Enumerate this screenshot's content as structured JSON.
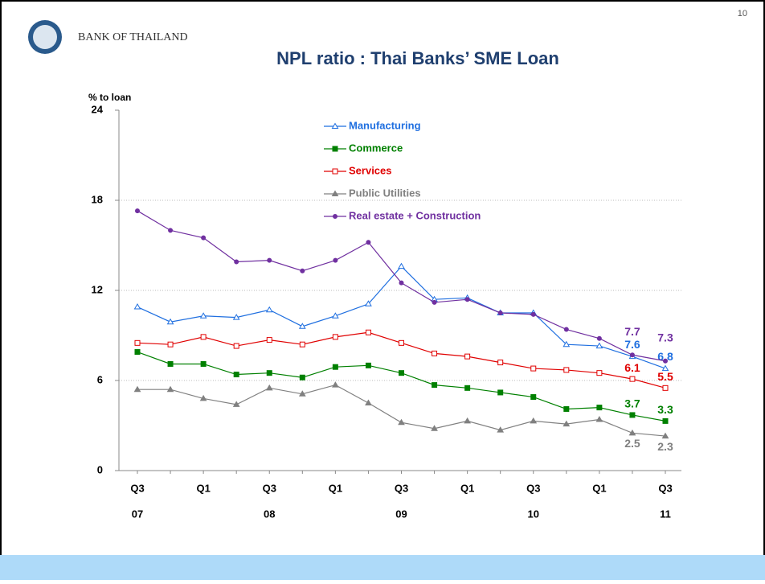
{
  "header": {
    "org": "BANK OF THAILAND",
    "page": "10"
  },
  "chart_data": {
    "type": "line",
    "title": "NPL ratio : Thai Banks’ SME Loan",
    "y_label": "% to loan",
    "categories": [
      "Q3",
      null,
      "Q1",
      null,
      "Q3",
      null,
      "Q1",
      null,
      "Q3",
      null,
      "Q1",
      null,
      "Q3",
      null,
      "Q1",
      null,
      "Q3"
    ],
    "category_years": [
      "07",
      null,
      null,
      null,
      "08",
      null,
      null,
      null,
      "09",
      null,
      null,
      null,
      "10",
      null,
      null,
      null,
      "11"
    ],
    "ylim": [
      0,
      24
    ],
    "yticks": [
      0,
      6,
      12,
      18,
      24
    ],
    "grid": true,
    "series": [
      {
        "name": "Manufacturing",
        "color": "#1f6fe0",
        "marker": "triangle-open",
        "values": [
          10.9,
          9.9,
          10.3,
          10.2,
          10.7,
          9.6,
          10.3,
          11.1,
          13.6,
          11.4,
          11.5,
          10.5,
          10.5,
          8.4,
          8.3,
          7.6,
          6.8
        ],
        "value_labels": [
          null,
          null,
          null,
          null,
          null,
          null,
          null,
          null,
          null,
          null,
          null,
          null,
          null,
          null,
          null,
          "7.6",
          "6.8"
        ]
      },
      {
        "name": "Commerce",
        "color": "#008000",
        "marker": "square",
        "values": [
          7.9,
          7.1,
          7.1,
          6.4,
          6.5,
          6.2,
          6.9,
          7.0,
          6.5,
          5.7,
          5.5,
          5.2,
          4.9,
          4.1,
          4.2,
          3.7,
          3.3
        ],
        "value_labels": [
          null,
          null,
          null,
          null,
          null,
          null,
          null,
          null,
          null,
          null,
          null,
          null,
          null,
          null,
          null,
          "3.7",
          "3.3"
        ]
      },
      {
        "name": "Services",
        "color": "#e00000",
        "marker": "square-open",
        "values": [
          8.5,
          8.4,
          8.9,
          8.3,
          8.7,
          8.4,
          8.9,
          9.2,
          8.5,
          7.8,
          7.6,
          7.2,
          6.8,
          6.7,
          6.5,
          6.1,
          5.5
        ],
        "value_labels": [
          null,
          null,
          null,
          null,
          null,
          null,
          null,
          null,
          null,
          null,
          null,
          null,
          null,
          null,
          null,
          "6.1",
          "5.5"
        ]
      },
      {
        "name": "Public Utilities",
        "color": "#808080",
        "marker": "triangle",
        "values": [
          5.4,
          5.4,
          4.8,
          4.4,
          5.5,
          5.1,
          5.7,
          4.5,
          3.2,
          2.8,
          3.3,
          2.7,
          3.3,
          3.1,
          3.4,
          2.5,
          2.3
        ],
        "value_labels": [
          null,
          null,
          null,
          null,
          null,
          null,
          null,
          null,
          null,
          null,
          null,
          null,
          null,
          null,
          null,
          "2.5",
          "2.3"
        ]
      },
      {
        "name": "Real estate + Construction",
        "color": "#7030a0",
        "marker": "circle",
        "values": [
          17.3,
          16.0,
          15.5,
          13.9,
          14.0,
          13.3,
          14.0,
          15.2,
          12.5,
          11.2,
          11.4,
          10.5,
          10.4,
          9.4,
          8.8,
          7.7,
          7.3
        ],
        "value_labels": [
          null,
          null,
          null,
          null,
          null,
          null,
          null,
          null,
          null,
          null,
          null,
          null,
          null,
          null,
          null,
          "7.7",
          "7.3"
        ]
      }
    ]
  }
}
